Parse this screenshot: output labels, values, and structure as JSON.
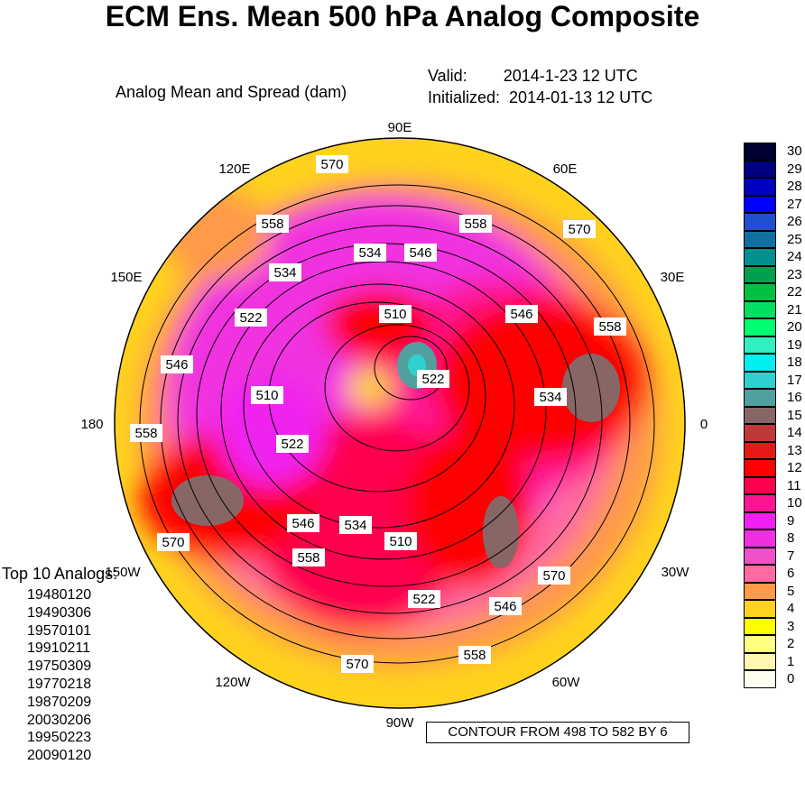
{
  "title": "ECM Ens. Mean 500 hPa Analog Composite",
  "subtitle": "Analog Mean and Spread (dam)",
  "valid_line": "Valid:        2014-1-23 12 UTC",
  "initialized_line": "Initialized:  2014-01-13 12 UTC",
  "analogs_title": "Top 10 Analogs:",
  "analogs": [
    "19480120",
    "19490306",
    "19570101",
    "19910211",
    "19750309",
    "19770218",
    "19870209",
    "20030206",
    "19950223",
    "20090120"
  ],
  "contour_note": "CONTOUR FROM 498 TO 582 BY 6",
  "longitude_labels": [
    "90E",
    "60E",
    "30E",
    "0",
    "30W",
    "60W",
    "90W",
    "120W",
    "150W",
    "180",
    "150E",
    "120E"
  ],
  "contour_labels": [
    "570",
    "558",
    "534",
    "546",
    "558",
    "570",
    "546",
    "558",
    "522",
    "510",
    "522",
    "534",
    "510",
    "546",
    "558",
    "522",
    "534",
    "546",
    "534",
    "510",
    "558",
    "522",
    "546",
    "570",
    "570",
    "558",
    "570"
  ],
  "colorbar": {
    "labels": [
      "0",
      "1",
      "2",
      "3",
      "4",
      "5",
      "6",
      "7",
      "8",
      "9",
      "10",
      "11",
      "12",
      "13",
      "14",
      "15",
      "16",
      "17",
      "18",
      "19",
      "20",
      "21",
      "22",
      "23",
      "24",
      "25",
      "26",
      "27",
      "28",
      "29",
      "30"
    ],
    "colors": [
      "#fffff0",
      "#fff8b0",
      "#ffff80",
      "#ffff00",
      "#ffd21e",
      "#ff9a4a",
      "#ff6aa0",
      "#f050c8",
      "#f030e0",
      "#f020f0",
      "#ff1493",
      "#ff0050",
      "#ff0000",
      "#e81818",
      "#c03838",
      "#886666",
      "#50a0a0",
      "#30d0d0",
      "#00f0f0",
      "#30f0c0",
      "#00ff70",
      "#00e060",
      "#00c040",
      "#00a050",
      "#009090",
      "#1070a0",
      "#2050d0",
      "#0000ff",
      "#0000c0",
      "#000080",
      "#000030"
    ]
  }
}
